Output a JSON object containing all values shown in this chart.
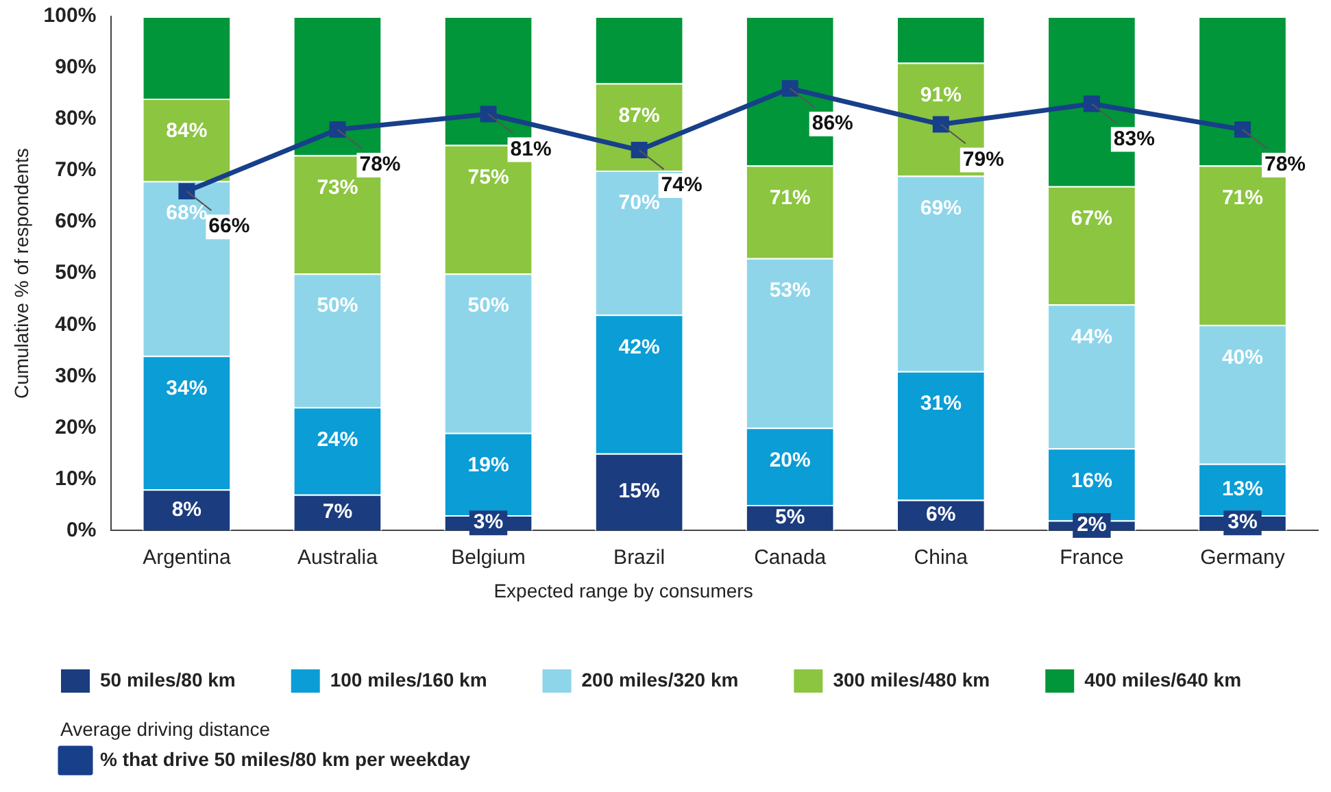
{
  "chart_data": {
    "type": "bar",
    "stacked": true,
    "ylabel": "Cumulative % of respondents",
    "legend_title": "Expected range by consumers",
    "categories": [
      "Argentina",
      "Australia",
      "Belgium",
      "Brazil",
      "Canada",
      "China",
      "France",
      "Germany"
    ],
    "ylim": [
      0,
      100
    ],
    "yticks": [
      {
        "value": 0,
        "label": "0%"
      },
      {
        "value": 10,
        "label": "10%"
      },
      {
        "value": 20,
        "label": "20%"
      },
      {
        "value": 30,
        "label": "30%"
      },
      {
        "value": 40,
        "label": "40%"
      },
      {
        "value": 50,
        "label": "50%"
      },
      {
        "value": 60,
        "label": "60%"
      },
      {
        "value": 70,
        "label": "70%"
      },
      {
        "value": 80,
        "label": "80%"
      },
      {
        "value": 90,
        "label": "90%"
      },
      {
        "value": 100,
        "label": "100%"
      }
    ],
    "grid": false,
    "legend": "bottom",
    "marker": "square",
    "line_style": "solid",
    "series": [
      {
        "name": "50 miles/80 km",
        "color": "#1b3c7e",
        "values": [
          8,
          7,
          3,
          15,
          5,
          6,
          2,
          3
        ],
        "value_labels": [
          "8%",
          "7%",
          "3%",
          "15%",
          "5%",
          "6%",
          "2%",
          "3%"
        ]
      },
      {
        "name": "100 miles/160 km",
        "color": "#0a9dd6",
        "values": [
          26,
          17,
          16,
          27,
          15,
          25,
          14,
          10
        ]
      },
      {
        "name": "200 miles/320 km",
        "color": "#8ed5ea",
        "values": [
          34,
          26,
          31,
          28,
          33,
          38,
          28,
          27
        ]
      },
      {
        "name": "300 miles/480 km",
        "color": "#8cc540",
        "values": [
          16,
          23,
          25,
          17,
          18,
          22,
          23,
          31
        ]
      },
      {
        "name": "400 miles/640 km",
        "color": "#009639",
        "values": [
          16,
          27,
          25,
          13,
          29,
          9,
          33,
          29
        ]
      },
      {
        "name": "% that drive 50 miles/80 km per weekday",
        "type": "line",
        "color": "#173f8a",
        "values": [
          66,
          78,
          81,
          74,
          86,
          79,
          83,
          78
        ],
        "value_labels": [
          "66%",
          "78%",
          "81%",
          "74%",
          "86%",
          "79%",
          "83%",
          "78%"
        ]
      }
    ],
    "annotations": [
      "Average driving distance",
      {
        "text": "34%",
        "x": "Argentina",
        "y": 34
      },
      {
        "text": "68%",
        "x": "Argentina",
        "y": 68
      },
      {
        "text": "84%",
        "x": "Argentina",
        "y": 84
      },
      {
        "text": "24%",
        "x": "Australia",
        "y": 24
      },
      {
        "text": "50%",
        "x": "Australia",
        "y": 50
      },
      {
        "text": "73%",
        "x": "Australia",
        "y": 73
      },
      {
        "text": "19%",
        "x": "Belgium",
        "y": 19
      },
      {
        "text": "50%",
        "x": "Belgium",
        "y": 50
      },
      {
        "text": "75%",
        "x": "Belgium",
        "y": 75
      },
      {
        "text": "42%",
        "x": "Brazil",
        "y": 42
      },
      {
        "text": "70%",
        "x": "Brazil",
        "y": 70
      },
      {
        "text": "87%",
        "x": "Brazil",
        "y": 87
      },
      {
        "text": "20%",
        "x": "Canada",
        "y": 20
      },
      {
        "text": "53%",
        "x": "Canada",
        "y": 53
      },
      {
        "text": "71%",
        "x": "Canada",
        "y": 71
      },
      {
        "text": "31%",
        "x": "China",
        "y": 31
      },
      {
        "text": "69%",
        "x": "China",
        "y": 69
      },
      {
        "text": "91%",
        "x": "China",
        "y": 91
      },
      {
        "text": "16%",
        "x": "France",
        "y": 16
      },
      {
        "text": "44%",
        "x": "France",
        "y": 44
      },
      {
        "text": "67%",
        "x": "France",
        "y": 67
      },
      {
        "text": "13%",
        "x": "Germany",
        "y": 13
      },
      {
        "text": "40%",
        "x": "Germany",
        "y": 40
      },
      {
        "text": "71%",
        "x": "Germany",
        "y": 71
      }
    ]
  }
}
